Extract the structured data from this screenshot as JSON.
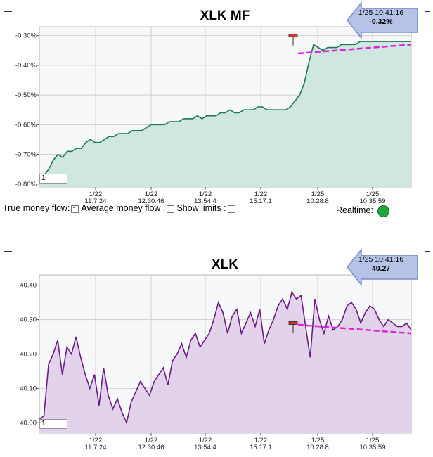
{
  "chart_data": [
    {
      "type": "area",
      "title": "XLK MF",
      "y_format": "percent",
      "ylim": [
        -0.81,
        -0.27
      ],
      "y_ticks": [
        -0.3,
        -0.4,
        -0.5,
        -0.6,
        -0.7,
        -0.8
      ],
      "y_tick_labels": [
        "-0.30%",
        "-0.40%",
        "-0.50%",
        "-0.60%",
        "-0.70%",
        "-0.80%"
      ],
      "x_tick_labels": [
        {
          "date": "1/22",
          "time": "11:7:24"
        },
        {
          "date": "1/22",
          "time": "12:30:46"
        },
        {
          "date": "1/22",
          "time": "13:54:4"
        },
        {
          "date": "1/22",
          "time": "15:17:1"
        },
        {
          "date": "1/25",
          "time": "10:28:8"
        },
        {
          "date": "1/25",
          "time": "10:35:59"
        }
      ],
      "grid": true,
      "line_color": "#1a7a56",
      "fill_color": "#cfe7e0",
      "trend_color": "#e020e0",
      "series": [
        {
          "values": [
            -0.8,
            -0.77,
            -0.75,
            -0.72,
            -0.7,
            -0.71,
            -0.69,
            -0.69,
            -0.68,
            -0.68,
            -0.66,
            -0.65,
            -0.66,
            -0.66,
            -0.65,
            -0.64,
            -0.64,
            -0.63,
            -0.63,
            -0.63,
            -0.62,
            -0.62,
            -0.62,
            -0.61,
            -0.6,
            -0.6,
            -0.6,
            -0.6,
            -0.59,
            -0.59,
            -0.59,
            -0.58,
            -0.58,
            -0.58,
            -0.57,
            -0.58,
            -0.57,
            -0.57,
            -0.57,
            -0.56,
            -0.56,
            -0.55,
            -0.56,
            -0.56,
            -0.55,
            -0.55,
            -0.55,
            -0.54,
            -0.54,
            -0.55,
            -0.55,
            -0.55,
            -0.55,
            -0.55,
            -0.54,
            -0.52,
            -0.5,
            -0.46,
            -0.39,
            -0.33,
            -0.34,
            -0.35,
            -0.34,
            -0.34,
            -0.34,
            -0.33,
            -0.33,
            -0.33,
            -0.33,
            -0.32,
            -0.32,
            -0.32,
            -0.32,
            -0.32,
            -0.32,
            -0.32,
            -0.32,
            -0.32,
            -0.32,
            -0.32,
            -0.32
          ]
        }
      ],
      "trendline": {
        "from": -0.36,
        "to": -0.33
      },
      "callout": {
        "time": "1/25 10:41:16",
        "value": "-0.32%"
      },
      "input_value": "1"
    },
    {
      "type": "area",
      "title": "XLK",
      "y_format": "number",
      "ylim": [
        39.97,
        40.43
      ],
      "y_ticks": [
        40.4,
        40.3,
        40.2,
        40.1,
        40.0
      ],
      "y_tick_labels": [
        "40.40",
        "40.30",
        "40.20",
        "40.10",
        "40.00"
      ],
      "x_tick_labels": [
        {
          "date": "1/22",
          "time": "11:7:24"
        },
        {
          "date": "1/22",
          "time": "12:30:46"
        },
        {
          "date": "1/22",
          "time": "13:54:4"
        },
        {
          "date": "1/22",
          "time": "15:17:1"
        },
        {
          "date": "1/25",
          "time": "10:28:8"
        },
        {
          "date": "1/25",
          "time": "10:35:59"
        }
      ],
      "grid": true,
      "line_color": "#6b1a8a",
      "fill_color": "#e2d3ea",
      "trend_color": "#e020e0",
      "series": [
        {
          "values": [
            40.01,
            40.02,
            40.17,
            40.2,
            40.24,
            40.14,
            40.22,
            40.2,
            40.25,
            40.19,
            40.14,
            40.1,
            40.14,
            40.05,
            40.16,
            40.08,
            40.04,
            40.07,
            40.03,
            40.0,
            40.06,
            40.09,
            40.12,
            40.1,
            40.08,
            40.12,
            40.14,
            40.16,
            40.11,
            40.18,
            40.2,
            40.23,
            40.19,
            40.24,
            40.26,
            40.22,
            40.24,
            40.26,
            40.3,
            40.35,
            40.32,
            40.26,
            40.31,
            40.33,
            40.26,
            40.29,
            40.32,
            40.28,
            40.33,
            40.23,
            40.27,
            40.3,
            40.34,
            40.36,
            40.33,
            40.38,
            40.36,
            40.37,
            40.28,
            40.19,
            40.36,
            40.3,
            40.26,
            40.31,
            40.27,
            40.28,
            40.3,
            40.34,
            40.35,
            40.33,
            40.29,
            40.32,
            40.34,
            40.33,
            40.3,
            40.28,
            40.3,
            40.29,
            40.28,
            40.28,
            40.29,
            40.27
          ]
        }
      ],
      "trendline": {
        "from": 40.285,
        "to": 40.26
      },
      "callout": {
        "time": "1/25 10:41:16",
        "value": "40.27"
      },
      "input_value": "1"
    }
  ],
  "controls": {
    "true_money_flow_label": "True money flow:",
    "true_money_flow_checked": true,
    "average_money_flow_label": "Average money flow :",
    "average_money_flow_checked": false,
    "show_limits_label": "Show limits :",
    "show_limits_checked": false,
    "realtime_label": "Realtime:",
    "realtime_color": "#22a83a"
  }
}
